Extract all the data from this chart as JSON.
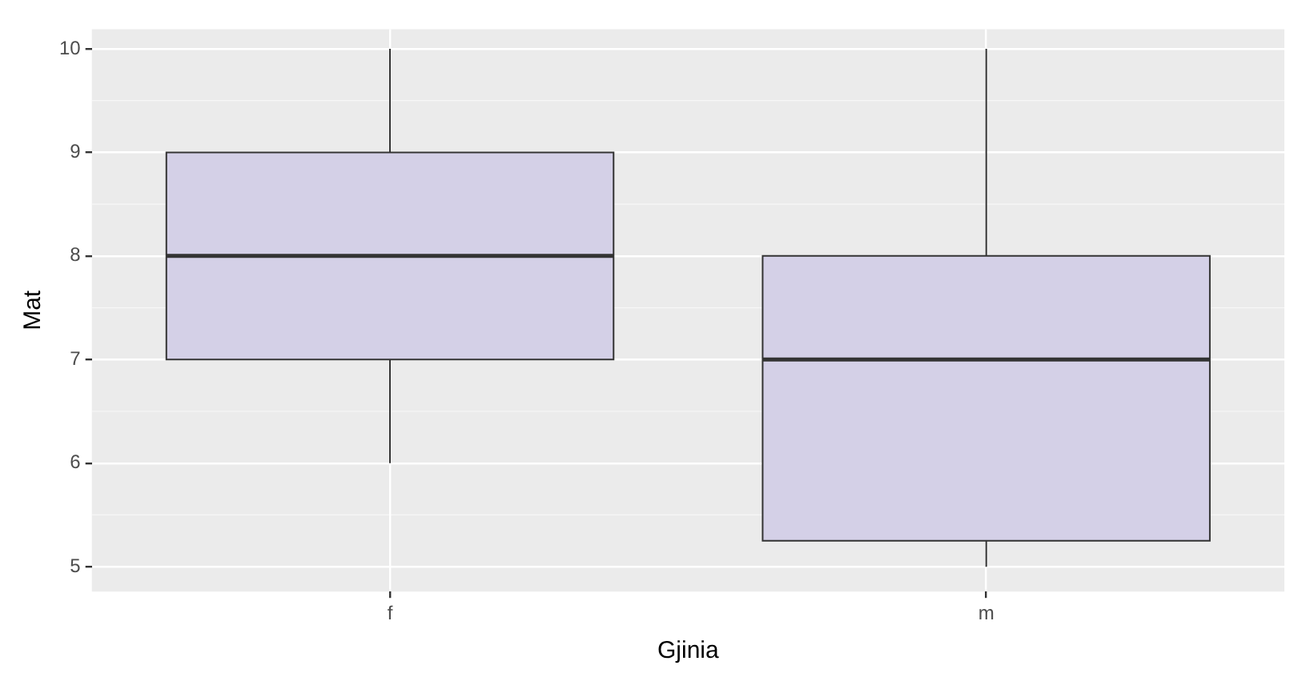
{
  "chart_data": {
    "type": "box",
    "xlabel": "Gjinia",
    "ylabel": "Mat",
    "categories": [
      "f",
      "m"
    ],
    "boxes": [
      {
        "low": 6,
        "q1": 7,
        "median": 8,
        "q3": 9,
        "high": 10
      },
      {
        "low": 5,
        "q1": 5.25,
        "median": 7,
        "q3": 8,
        "high": 10
      }
    ],
    "color": "#d4d0e7",
    "ylim": [
      4.76,
      10.19
    ],
    "yticks": [
      5,
      6,
      7,
      8,
      9,
      10
    ],
    "grid": true
  }
}
